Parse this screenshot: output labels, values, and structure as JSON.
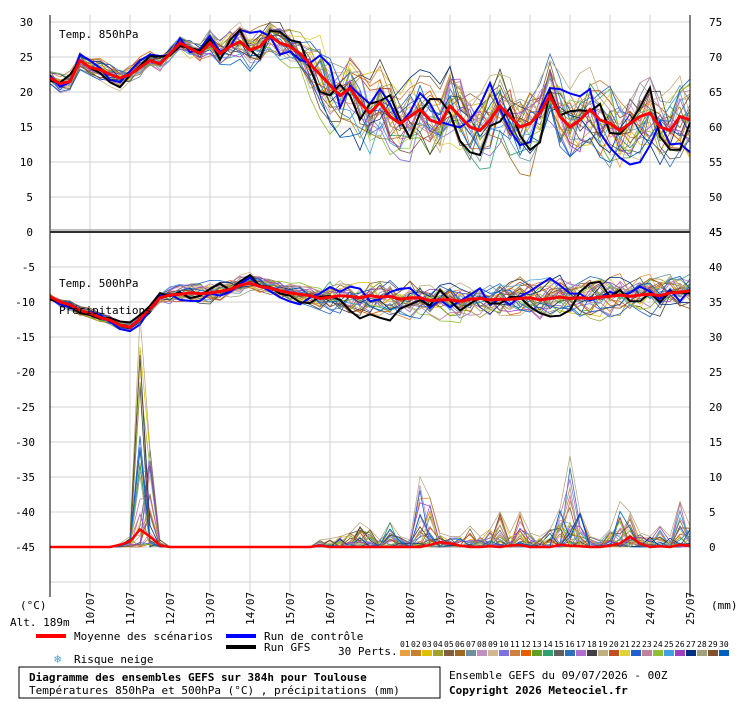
{
  "chart_data": {
    "type": "line",
    "title": "Diagramme des ensembles GEFS sur 384h pour Toulouse",
    "subtitle": "Températures 850hPa et 500hPa (°C) , précipitations (mm)",
    "left_unit": "(°C)",
    "right_unit": "(mm)",
    "altitude": "Alt. 189m",
    "panel_labels": {
      "t850": "Temp. 850hPa",
      "t500": "Temp. 500hPa",
      "precip": "Précipitations"
    },
    "x_tick_labels": [
      "10/07",
      "11/07",
      "12/07",
      "13/07",
      "14/07",
      "15/07",
      "16/07",
      "17/07",
      "18/07",
      "19/07",
      "20/07",
      "21/07",
      "22/07",
      "23/07",
      "24/07",
      "25/07"
    ],
    "x_range_days": [
      9.0,
      25.0
    ],
    "upper_panel": {
      "left_ticks": [
        "30",
        "25",
        "20",
        "15",
        "10",
        "5",
        "0"
      ],
      "right_ticks": [
        "75",
        "70",
        "65",
        "60",
        "55",
        "50",
        "45"
      ],
      "ylim": [
        0,
        30
      ],
      "mean_label": "Moyenne des scénarios",
      "mean_x": [
        9.0,
        9.25,
        9.5,
        9.75,
        10.0,
        10.25,
        10.5,
        10.75,
        11.0,
        11.25,
        11.5,
        11.75,
        12.0,
        12.25,
        12.5,
        12.75,
        13.0,
        13.25,
        13.5,
        13.75,
        14.0,
        14.25,
        14.5,
        14.75,
        15.0,
        15.25,
        15.5,
        15.75,
        16.0,
        16.25,
        16.5,
        16.75,
        17.0,
        17.25,
        17.5,
        17.75,
        18.0,
        18.25,
        18.5,
        18.75,
        19.0,
        19.25,
        19.5,
        19.75,
        20.0,
        20.25,
        20.5,
        20.75,
        21.0,
        21.25,
        21.5,
        21.75,
        22.0,
        22.25,
        22.5,
        22.75,
        23.0,
        23.25,
        23.5,
        23.75,
        24.0,
        24.25,
        24.5,
        24.75,
        25.0
      ],
      "mean_values": [
        22,
        21.2,
        21.5,
        24.5,
        23.5,
        23.2,
        22.5,
        22,
        22.5,
        23.5,
        24.5,
        24,
        25.5,
        27,
        26.2,
        25.5,
        27,
        25.5,
        26.5,
        27.2,
        26,
        26.5,
        28,
        27,
        26.5,
        25.5,
        24,
        22.5,
        21,
        19.5,
        20.5,
        18.5,
        17,
        18.5,
        16.5,
        15.5,
        16.5,
        17.5,
        16,
        15.5,
        18,
        16.5,
        15,
        14.5,
        16,
        18,
        16.5,
        15,
        15.5,
        17,
        19.5,
        16.5,
        15,
        16,
        17.5,
        16,
        15.5,
        14.5,
        15.5,
        16.5,
        17,
        15,
        14.5,
        16.5,
        16
      ]
    },
    "lower_panel": {
      "left_ticks": [
        "-5",
        "-10",
        "-15",
        "-20",
        "-25",
        "-30",
        "-35",
        "-40",
        "-45"
      ],
      "right_ticks": [
        "45",
        "40",
        "35",
        "30",
        "25",
        "20",
        "15",
        "10",
        "5",
        "0"
      ],
      "ylim": [
        -50,
        0
      ],
      "mean_x": [
        9.0,
        9.25,
        9.5,
        9.75,
        10.0,
        10.25,
        10.5,
        10.75,
        11.0,
        11.25,
        11.5,
        11.75,
        12.0,
        12.25,
        12.5,
        12.75,
        13.0,
        13.25,
        13.5,
        13.75,
        14.0,
        14.25,
        14.5,
        14.75,
        15.0,
        15.25,
        15.5,
        15.75,
        16.0,
        16.25,
        16.5,
        16.75,
        17.0,
        17.25,
        17.5,
        17.75,
        18.0,
        18.25,
        18.5,
        18.75,
        19.0,
        19.25,
        19.5,
        19.75,
        20.0,
        20.25,
        20.5,
        20.75,
        21.0,
        21.25,
        21.5,
        21.75,
        22.0,
        22.25,
        22.5,
        22.75,
        23.0,
        23.25,
        23.5,
        23.75,
        24.0,
        24.25,
        24.5,
        24.75,
        25.0
      ],
      "mean_t500": [
        -9.2,
        -10,
        -10.4,
        -11.2,
        -11.6,
        -12.2,
        -12.6,
        -13.3,
        -13.6,
        -12.4,
        -11,
        -9.4,
        -9,
        -8.9,
        -8.7,
        -8.8,
        -8.7,
        -8.5,
        -8.2,
        -7.6,
        -7.3,
        -7.8,
        -8,
        -8.4,
        -8.7,
        -8.9,
        -9.1,
        -9.5,
        -9.3,
        -9.1,
        -9.2,
        -9.4,
        -9.1,
        -9.3,
        -9.2,
        -9.6,
        -9.4,
        -9.4,
        -9.8,
        -9.7,
        -9.7,
        -9.9,
        -9.6,
        -9.5,
        -9.7,
        -9.6,
        -9.6,
        -9.5,
        -9.4,
        -9.7,
        -9.5,
        -9.3,
        -9.5,
        -9.4,
        -9.5,
        -9.3,
        -9.2,
        -9.0,
        -9.2,
        -9.0,
        -8.9,
        -9.1,
        -8.7,
        -8.6,
        -8.4
      ],
      "precip_mean_mm": [
        0,
        0,
        0,
        0,
        0,
        0,
        0,
        0.3,
        0.8,
        2.5,
        1.5,
        0.2,
        0,
        0,
        0,
        0,
        0,
        0,
        0,
        0,
        0,
        0,
        0,
        0,
        0,
        0,
        0,
        0.2,
        0,
        0,
        0,
        0,
        0,
        0,
        0,
        0,
        0,
        0,
        0.3,
        0.7,
        0.5,
        0.2,
        0,
        0,
        0.1,
        0,
        0.2,
        0.3,
        0,
        0,
        0,
        0.3,
        0.2,
        0.1,
        0,
        0,
        0.2,
        0.5,
        1.5,
        0.5,
        0,
        0.1,
        0,
        0.3,
        0.2
      ],
      "precip_max_mm": [
        0,
        0,
        0,
        0,
        0,
        0,
        0,
        0.5,
        1.5,
        33,
        14,
        1,
        0,
        0,
        0,
        0,
        0,
        0,
        0,
        0,
        0,
        0,
        0,
        0,
        0,
        0,
        0,
        1,
        1.2,
        1.5,
        2,
        3.5,
        2.5,
        1,
        3.5,
        1.5,
        1,
        10,
        7,
        2,
        1.5,
        1.5,
        3,
        1.5,
        2.5,
        5,
        2,
        5,
        2,
        1.5,
        2.5,
        5.5,
        13,
        5,
        1.5,
        1,
        2.5,
        6.5,
        5,
        2,
        1.5,
        3,
        1.5,
        6.5,
        3
      ]
    },
    "legend": {
      "mean": "Moyenne des scénarios",
      "control": "Run de contrôle",
      "gfs": "Run GFS",
      "snow": "Risque neige",
      "perts_label": "30 Perts.",
      "pert_numbers": [
        "01",
        "02",
        "03",
        "04",
        "05",
        "06",
        "07",
        "08",
        "09",
        "10",
        "11",
        "12",
        "13",
        "14",
        "15",
        "16",
        "17",
        "18",
        "19",
        "20",
        "21",
        "22",
        "23",
        "24",
        "25",
        "26",
        "27",
        "28",
        "29",
        "30"
      ],
      "pert_colors": [
        "#e8a040",
        "#c88030",
        "#e0c000",
        "#a0a030",
        "#806040",
        "#a06820",
        "#7090a0",
        "#c090c0",
        "#d0b890",
        "#8070e0",
        "#d08040",
        "#e06000",
        "#60a020",
        "#30a070",
        "#606060",
        "#3070c0",
        "#b070d0",
        "#404040",
        "#c0b080",
        "#c05020",
        "#e0d040",
        "#2060d0",
        "#c080a0",
        "#90c030",
        "#40a0e0",
        "#a040c0",
        "#003080",
        "#a0a080",
        "#805030",
        "#0060c0"
      ],
      "colors": {
        "mean": "#ff0000",
        "control": "#0000ff",
        "gfs": "#000000"
      }
    },
    "footer": {
      "ensemble_info": "Ensemble GEFS du 09/07/2026 - 00Z",
      "copyright": "Copyright 2026 Meteociel.fr"
    }
  }
}
